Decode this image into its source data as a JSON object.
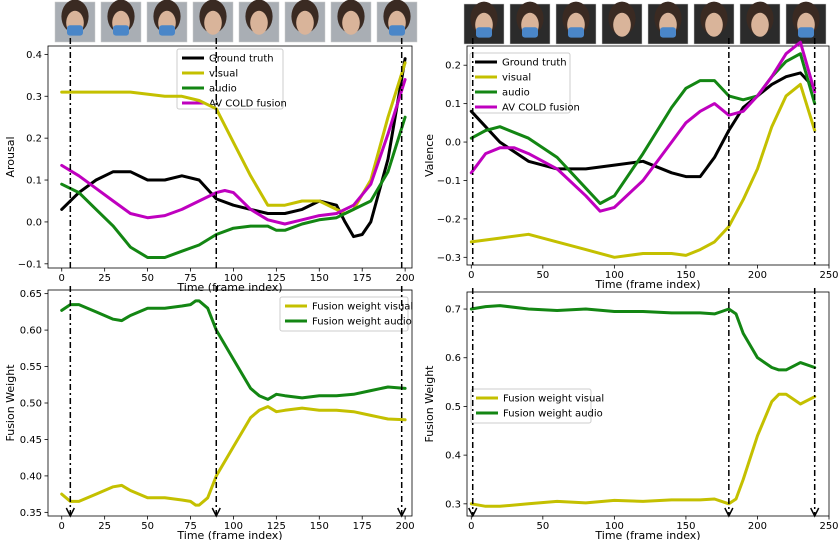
{
  "chart_data": [
    {
      "id": "arousal",
      "type": "line",
      "xlabel": "Time (frame index)",
      "ylabel": "Arousal",
      "xlim": [
        -8,
        204
      ],
      "ylim": [
        -0.11,
        0.42
      ],
      "xticks": [
        0,
        25,
        50,
        75,
        100,
        125,
        150,
        175,
        200
      ],
      "yticks": [
        -0.1,
        0.0,
        0.1,
        0.2,
        0.3,
        0.4
      ],
      "ytick_labels": [
        "−0.1",
        "0.0",
        "0.1",
        "0.2",
        "0.3",
        "0.4"
      ],
      "markers_x": [
        5,
        90,
        198
      ],
      "legend_position": "top-center",
      "series": [
        {
          "name": "Ground truth",
          "color": "#000000",
          "x": [
            0,
            10,
            20,
            30,
            40,
            50,
            60,
            70,
            80,
            90,
            100,
            110,
            120,
            130,
            140,
            150,
            160,
            165,
            170,
            175,
            180,
            190,
            200
          ],
          "y": [
            0.03,
            0.07,
            0.1,
            0.12,
            0.12,
            0.1,
            0.1,
            0.11,
            0.1,
            0.055,
            0.04,
            0.03,
            0.02,
            0.02,
            0.03,
            0.05,
            0.04,
            0.0,
            -0.035,
            -0.03,
            0.0,
            0.15,
            0.39
          ]
        },
        {
          "name": "visual",
          "color": "#c4c000",
          "x": [
            0,
            20,
            40,
            60,
            70,
            80,
            90,
            100,
            110,
            120,
            125,
            130,
            140,
            150,
            160,
            165,
            170,
            180,
            190,
            200
          ],
          "y": [
            0.31,
            0.31,
            0.31,
            0.3,
            0.3,
            0.29,
            0.27,
            0.19,
            0.11,
            0.04,
            0.04,
            0.04,
            0.05,
            0.05,
            0.03,
            0.02,
            0.03,
            0.1,
            0.25,
            0.38
          ]
        },
        {
          "name": "audio",
          "color": "#138613",
          "x": [
            0,
            10,
            20,
            30,
            40,
            50,
            60,
            70,
            80,
            90,
            100,
            110,
            120,
            125,
            130,
            140,
            150,
            160,
            170,
            180,
            190,
            200
          ],
          "y": [
            0.09,
            0.07,
            0.03,
            -0.01,
            -0.06,
            -0.085,
            -0.085,
            -0.07,
            -0.055,
            -0.03,
            -0.015,
            -0.01,
            -0.01,
            -0.02,
            -0.02,
            -0.005,
            0.005,
            0.01,
            0.03,
            0.05,
            0.12,
            0.25
          ]
        },
        {
          "name": "AV COLD fusion",
          "color": "#bf00bf",
          "x": [
            0,
            10,
            20,
            30,
            40,
            50,
            60,
            70,
            80,
            90,
            95,
            100,
            110,
            120,
            130,
            140,
            150,
            160,
            170,
            180,
            190,
            200
          ],
          "y": [
            0.135,
            0.11,
            0.08,
            0.05,
            0.02,
            0.01,
            0.015,
            0.03,
            0.05,
            0.07,
            0.075,
            0.07,
            0.03,
            0.005,
            -0.005,
            0.005,
            0.015,
            0.02,
            0.04,
            0.09,
            0.21,
            0.34
          ]
        }
      ]
    },
    {
      "id": "valence",
      "type": "line",
      "xlabel": "Time (frame index)",
      "ylabel": "Valence",
      "xlim": [
        -3,
        250
      ],
      "ylim": [
        -0.32,
        0.25
      ],
      "xticks": [
        0,
        50,
        100,
        150,
        200,
        250
      ],
      "yticks": [
        -0.3,
        -0.2,
        -0.1,
        0.0,
        0.1,
        0.2
      ],
      "ytick_labels": [
        "−0.3",
        "−0.2",
        "−0.1",
        "0.0",
        "0.1",
        "0.2"
      ],
      "markers_x": [
        1,
        180,
        240
      ],
      "legend_position": "top-left",
      "series": [
        {
          "name": "Ground truth",
          "color": "#000000",
          "x": [
            0,
            10,
            20,
            40,
            60,
            80,
            100,
            120,
            140,
            150,
            160,
            170,
            180,
            190,
            200,
            210,
            220,
            230,
            240
          ],
          "y": [
            0.08,
            0.04,
            0.0,
            -0.05,
            -0.07,
            -0.07,
            -0.06,
            -0.05,
            -0.08,
            -0.09,
            -0.09,
            -0.04,
            0.03,
            0.09,
            0.12,
            0.15,
            0.17,
            0.18,
            0.14
          ]
        },
        {
          "name": "visual",
          "color": "#c4c000",
          "x": [
            0,
            20,
            40,
            60,
            80,
            100,
            120,
            140,
            150,
            160,
            170,
            180,
            190,
            200,
            210,
            220,
            230,
            240
          ],
          "y": [
            -0.26,
            -0.25,
            -0.24,
            -0.26,
            -0.28,
            -0.3,
            -0.29,
            -0.29,
            -0.295,
            -0.28,
            -0.26,
            -0.22,
            -0.15,
            -0.07,
            0.04,
            0.12,
            0.15,
            0.03
          ]
        },
        {
          "name": "audio",
          "color": "#138613",
          "x": [
            0,
            10,
            20,
            40,
            60,
            80,
            90,
            100,
            120,
            140,
            150,
            160,
            170,
            180,
            190,
            200,
            210,
            220,
            230,
            240
          ],
          "y": [
            0.01,
            0.03,
            0.04,
            0.01,
            -0.04,
            -0.12,
            -0.16,
            -0.14,
            -0.03,
            0.09,
            0.14,
            0.16,
            0.16,
            0.12,
            0.11,
            0.12,
            0.17,
            0.21,
            0.23,
            0.1
          ]
        },
        {
          "name": "AV COLD fusion",
          "color": "#bf00bf",
          "x": [
            0,
            10,
            20,
            30,
            40,
            60,
            80,
            90,
            100,
            120,
            140,
            150,
            160,
            170,
            180,
            190,
            200,
            210,
            220,
            230,
            240
          ],
          "y": [
            -0.08,
            -0.03,
            -0.015,
            -0.015,
            -0.03,
            -0.07,
            -0.14,
            -0.18,
            -0.17,
            -0.1,
            0.0,
            0.05,
            0.08,
            0.1,
            0.07,
            0.08,
            0.12,
            0.17,
            0.23,
            0.26,
            0.13
          ]
        }
      ]
    },
    {
      "id": "fusion-arousal",
      "type": "line",
      "xlabel": "Time (frame index)",
      "ylabel": "Fusion Weight",
      "xlim": [
        -8,
        204
      ],
      "ylim": [
        0.345,
        0.655
      ],
      "xticks": [
        0,
        25,
        50,
        75,
        100,
        125,
        150,
        175,
        200
      ],
      "yticks": [
        0.35,
        0.4,
        0.45,
        0.5,
        0.55,
        0.6,
        0.65
      ],
      "ytick_labels": [
        "0.35",
        "0.40",
        "0.45",
        "0.50",
        "0.55",
        "0.60",
        "0.65"
      ],
      "markers_x": [
        5,
        90,
        198
      ],
      "legend_position": "top-right",
      "series": [
        {
          "name": "Fusion weight visual",
          "color": "#c4c000",
          "x": [
            0,
            5,
            10,
            20,
            30,
            35,
            40,
            50,
            60,
            70,
            75,
            78,
            80,
            85,
            90,
            100,
            110,
            115,
            120,
            125,
            130,
            140,
            150,
            160,
            170,
            180,
            190,
            200
          ],
          "y": [
            0.375,
            0.365,
            0.365,
            0.375,
            0.385,
            0.387,
            0.38,
            0.37,
            0.37,
            0.367,
            0.365,
            0.36,
            0.36,
            0.37,
            0.4,
            0.44,
            0.48,
            0.49,
            0.495,
            0.488,
            0.49,
            0.493,
            0.49,
            0.49,
            0.488,
            0.483,
            0.478,
            0.477
          ]
        },
        {
          "name": "Fusion weight audio",
          "color": "#138613",
          "x": [
            0,
            5,
            10,
            20,
            30,
            35,
            40,
            50,
            60,
            70,
            75,
            78,
            80,
            85,
            90,
            100,
            110,
            115,
            120,
            125,
            130,
            140,
            150,
            160,
            170,
            180,
            190,
            200
          ],
          "y": [
            0.627,
            0.635,
            0.635,
            0.625,
            0.615,
            0.613,
            0.62,
            0.63,
            0.63,
            0.633,
            0.635,
            0.64,
            0.64,
            0.63,
            0.6,
            0.56,
            0.52,
            0.51,
            0.505,
            0.512,
            0.51,
            0.507,
            0.51,
            0.51,
            0.512,
            0.517,
            0.522,
            0.52
          ]
        }
      ]
    },
    {
      "id": "fusion-valence",
      "type": "line",
      "xlabel": "Time (frame index)",
      "ylabel": "Fusion Weight",
      "xlim": [
        -3,
        250
      ],
      "ylim": [
        0.275,
        0.735
      ],
      "xticks": [
        0,
        50,
        100,
        150,
        200,
        250
      ],
      "yticks": [
        0.3,
        0.4,
        0.5,
        0.6,
        0.7
      ],
      "ytick_labels": [
        "0.3",
        "0.4",
        "0.5",
        "0.6",
        "0.7"
      ],
      "markers_x": [
        1,
        180,
        240
      ],
      "legend_position": "center-left",
      "series": [
        {
          "name": "Fusion weight visual",
          "color": "#c4c000",
          "x": [
            0,
            10,
            20,
            40,
            60,
            80,
            100,
            120,
            140,
            160,
            170,
            175,
            180,
            185,
            190,
            200,
            210,
            215,
            220,
            230,
            240
          ],
          "y": [
            0.3,
            0.295,
            0.295,
            0.3,
            0.305,
            0.302,
            0.307,
            0.305,
            0.308,
            0.308,
            0.31,
            0.305,
            0.3,
            0.31,
            0.35,
            0.44,
            0.51,
            0.525,
            0.525,
            0.505,
            0.52
          ]
        },
        {
          "name": "Fusion weight audio",
          "color": "#138613",
          "x": [
            0,
            10,
            20,
            40,
            60,
            80,
            100,
            120,
            140,
            160,
            170,
            175,
            180,
            185,
            190,
            200,
            210,
            215,
            220,
            230,
            240
          ],
          "y": [
            0.7,
            0.705,
            0.707,
            0.7,
            0.697,
            0.7,
            0.695,
            0.695,
            0.692,
            0.692,
            0.69,
            0.695,
            0.7,
            0.69,
            0.65,
            0.6,
            0.58,
            0.575,
            0.575,
            0.59,
            0.58
          ]
        }
      ]
    }
  ]
}
